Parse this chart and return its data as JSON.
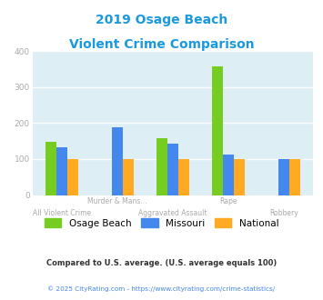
{
  "title_line1": "2019 Osage Beach",
  "title_line2": "Violent Crime Comparison",
  "title_color": "#1a99dd",
  "cat_line1": [
    "",
    "Murder & Mans...",
    "",
    "Rape",
    ""
  ],
  "cat_line2": [
    "All Violent Crime",
    "",
    "Aggravated Assault",
    "",
    "Robbery"
  ],
  "osage_beach": [
    148,
    0,
    157,
    358,
    0
  ],
  "missouri": [
    132,
    188,
    143,
    112,
    100
  ],
  "national": [
    100,
    100,
    100,
    100,
    100
  ],
  "osage_color": "#77cc22",
  "missouri_color": "#4488ee",
  "national_color": "#ffaa22",
  "bg_color": "#ddeef4",
  "ylim": [
    0,
    400
  ],
  "yticks": [
    0,
    100,
    200,
    300,
    400
  ],
  "ytick_color": "#aaaaaa",
  "xtick_color": "#aaaaaa",
  "legend_labels": [
    "Osage Beach",
    "Missouri",
    "National"
  ],
  "footnote1": "Compared to U.S. average. (U.S. average equals 100)",
  "footnote2": "© 2025 CityRating.com - https://www.cityrating.com/crime-statistics/",
  "footnote1_color": "#333333",
  "footnote2_color": "#4488ee"
}
